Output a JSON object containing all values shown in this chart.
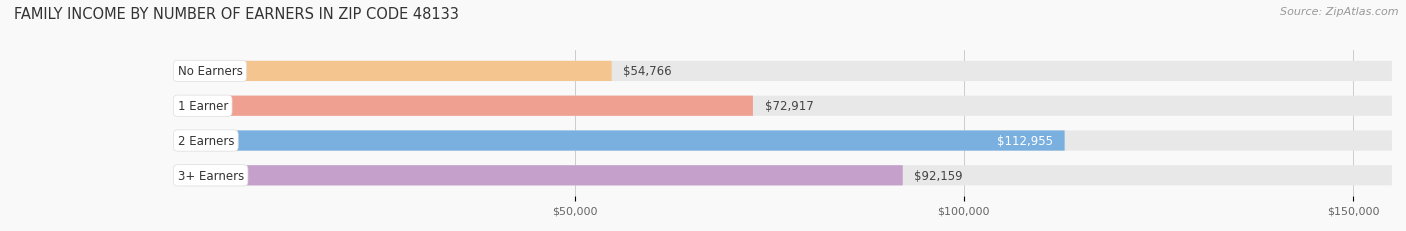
{
  "title": "FAMILY INCOME BY NUMBER OF EARNERS IN ZIP CODE 48133",
  "source": "Source: ZipAtlas.com",
  "categories": [
    "No Earners",
    "1 Earner",
    "2 Earners",
    "3+ Earners"
  ],
  "values": [
    54766,
    72917,
    112955,
    92159
  ],
  "bar_colors": [
    "#f5c590",
    "#f0a090",
    "#7ab0df",
    "#c4a0cb"
  ],
  "bar_bg_color": "#e8e8e8",
  "label_colors": [
    "#444444",
    "#444444",
    "#ffffff",
    "#444444"
  ],
  "xlim_left": -22000,
  "xlim_right": 155000,
  "xticks": [
    50000,
    100000,
    150000
  ],
  "xtick_labels": [
    "$50,000",
    "$100,000",
    "$150,000"
  ],
  "title_fontsize": 10.5,
  "source_fontsize": 8,
  "label_fontsize": 8.5,
  "tick_fontsize": 8,
  "category_fontsize": 8.5,
  "background_color": "#f9f9f9",
  "bar_height": 0.58,
  "category_text_color": "#333333",
  "grid_color": "#cccccc",
  "bar_rounding": 8000
}
